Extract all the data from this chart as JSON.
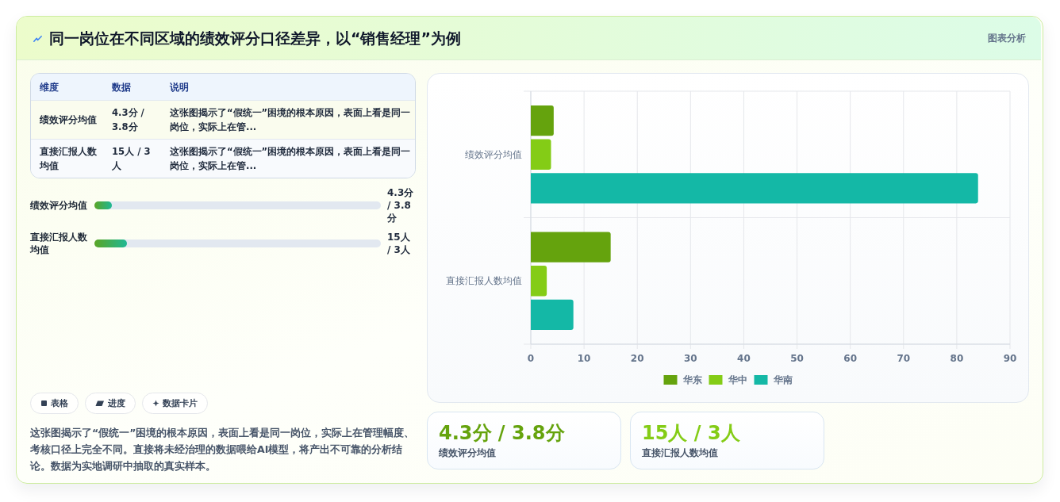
{
  "chart_data": [
    {
      "type": "other",
      "title": "同一岗位在不同区域的绩效评分口径差异，以“销售经理”为例",
      "annotations": [
        "图表分析"
      ]
    },
    {
      "type": "other",
      "annotations": [
        "维度",
        "数据",
        "说明",
        "绩效评分均值",
        "4.3分 / 3.8分",
        "这张图揭示了“假统一”困境的根本原因，表面上看是同一岗位，实际上在管...",
        "直接汇报人数均值",
        "15人 / 3人",
        "这张图揭示了“假统一”困境的根本原因，表面上看是同一岗位，实际上在管..."
      ]
    },
    {
      "type": "other",
      "annotations": [
        "绩效评分均值",
        "4.3分 / 3.8分",
        "直接汇报人数均值",
        "15人 / 3人"
      ]
    },
    {
      "type": "other",
      "annotations": [
        "表格",
        "进度",
        "数据卡片",
        "这张图揭示了“假统一”困境的根本原因，表面上看是同一岗位，实际上在管理幅度、考核口径上完全不同。直接将未经治理的数据喂给AI模型，将产出不可靠的分析结论。数据为实地调研中抽取的真实样本。"
      ]
    },
    {
      "type": "bar",
      "orientation": "horizontal",
      "categories": [
        "绩效评分均值",
        "直接汇报人数均值"
      ],
      "series": [
        {
          "name": "华东",
          "color": "#65a30d",
          "values": [
            4.3,
            15
          ]
        },
        {
          "name": "华中",
          "color": "#84cc16",
          "values": [
            3.8,
            3
          ]
        },
        {
          "name": "华南",
          "color": "#14b8a6",
          "values": [
            84,
            8
          ]
        }
      ],
      "xlim": [
        0,
        90
      ],
      "xticks": [
        0,
        10,
        20,
        30,
        40,
        50,
        60,
        70,
        80,
        90
      ],
      "grid": true,
      "legend": "bottom"
    },
    {
      "type": "other",
      "annotations": [
        "4.3分 / 3.8分",
        "绩效评分均值",
        "15人 / 3人",
        "直接汇报人数均值"
      ]
    }
  ]
}
